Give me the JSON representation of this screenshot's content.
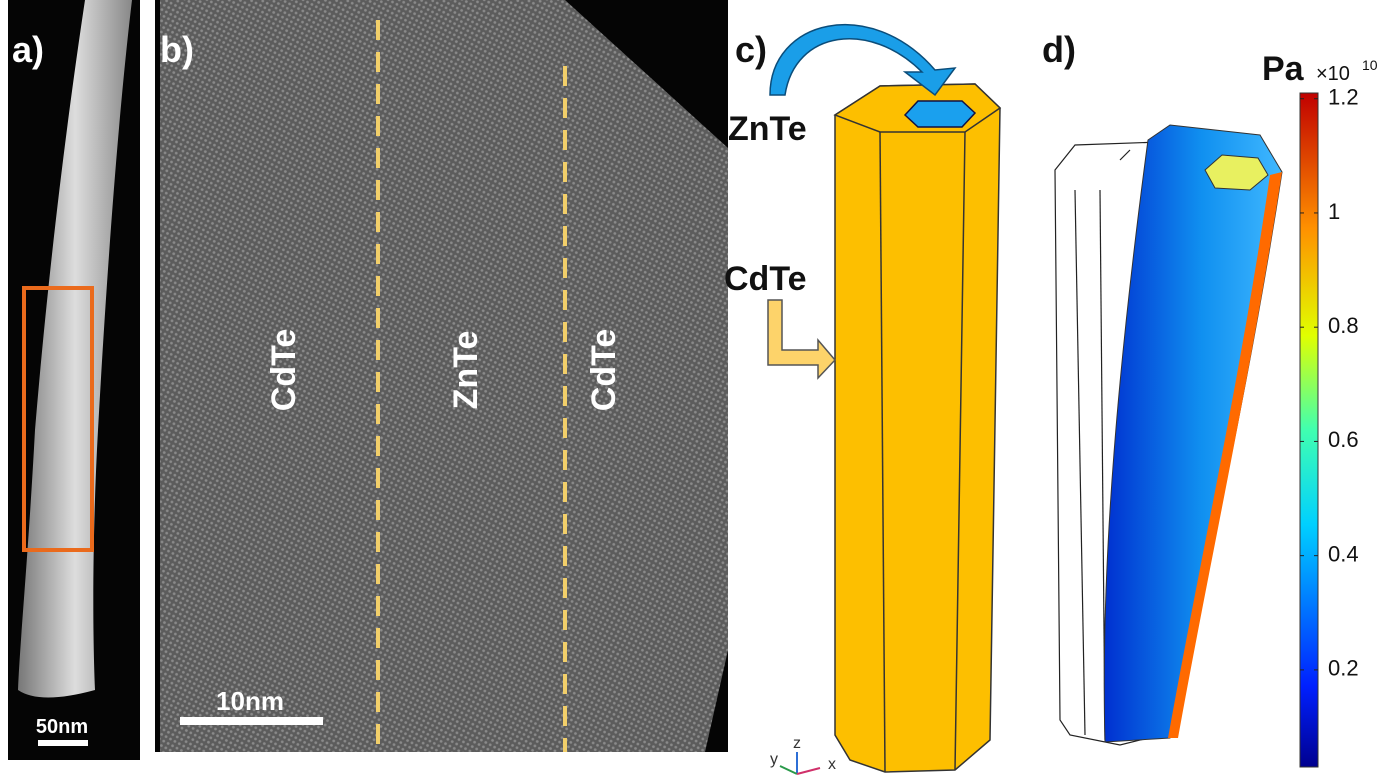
{
  "panels": {
    "a": {
      "label": "a)",
      "scale_bar": "50nm"
    },
    "b": {
      "label": "b)",
      "scale_bar": "10nm",
      "regions": [
        "CdTe",
        "ZnTe",
        "CdTe"
      ]
    },
    "c": {
      "label": "c)",
      "core": "ZnTe",
      "shell": "CdTe",
      "axes": [
        "y",
        "z",
        "x"
      ]
    },
    "d": {
      "label": "d)",
      "colorbar": {
        "unit": "Pa",
        "multiplier": "×10",
        "exponent": "10",
        "range": [
          0.03,
          1.21
        ],
        "ticks": [
          0.2,
          0.4,
          0.6,
          0.8,
          1,
          1.2
        ]
      }
    }
  }
}
